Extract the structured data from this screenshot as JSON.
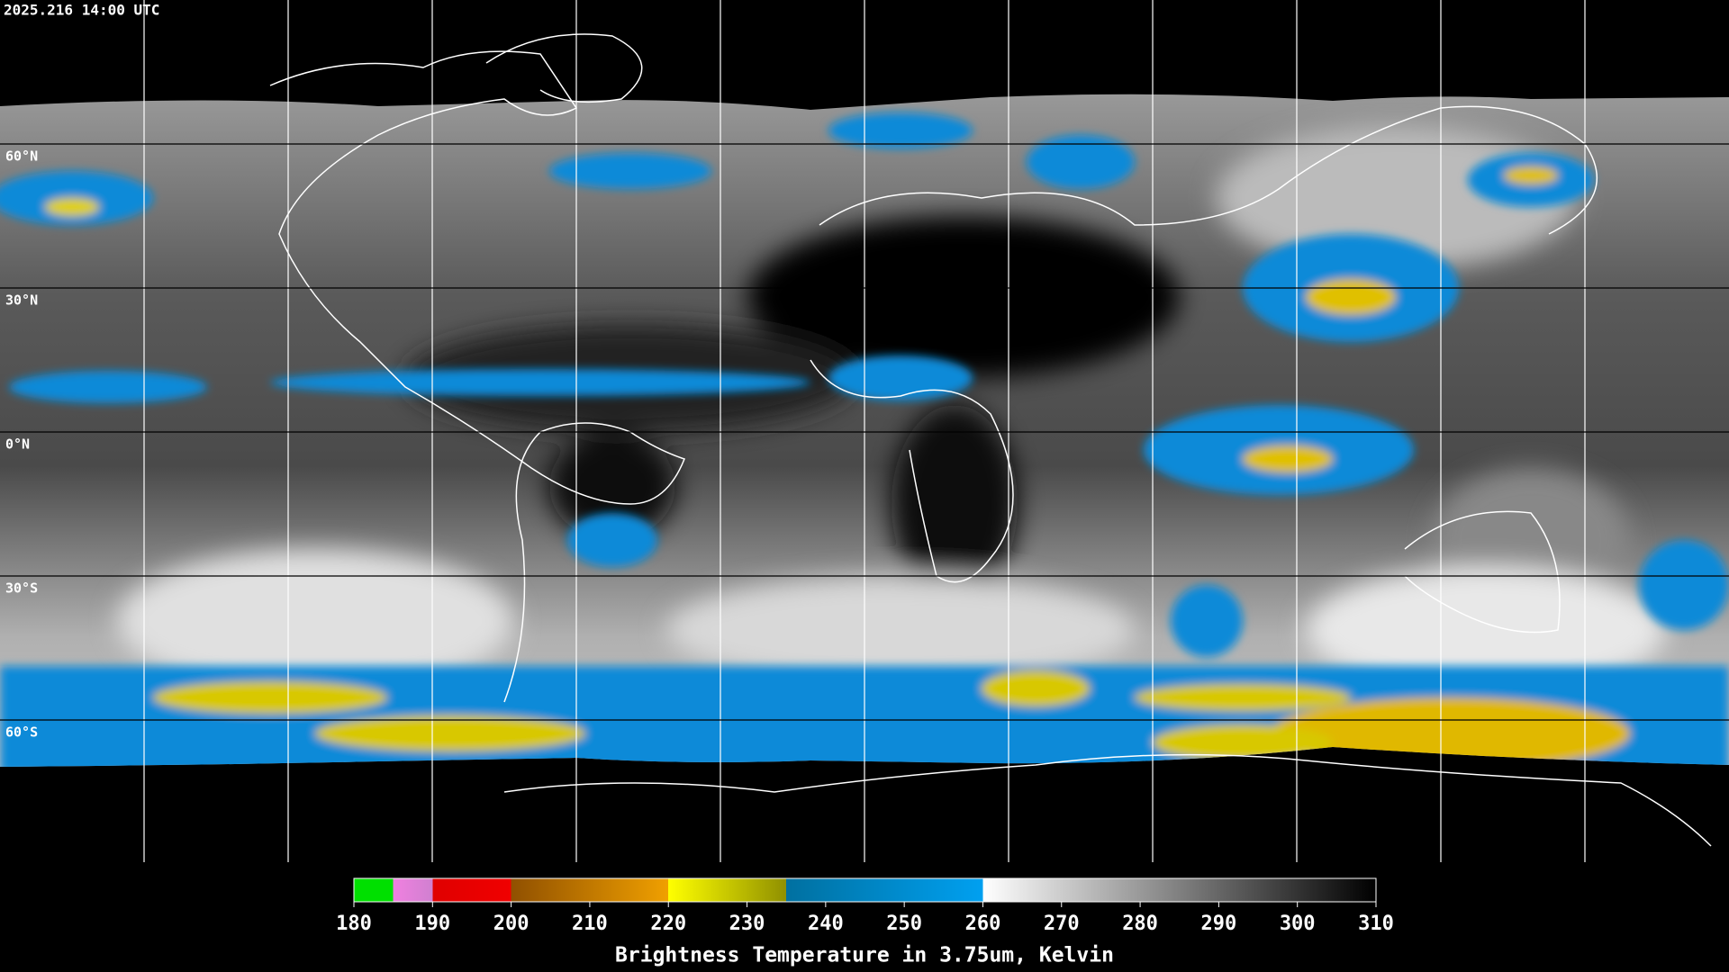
{
  "header": {
    "timestamp": "2025.216 14:00 UTC"
  },
  "grid": {
    "lat_labels": [
      "60°N",
      "30°N",
      "0°N",
      "30°S",
      "60°S"
    ]
  },
  "colorbar": {
    "title": "Brightness Temperature in 3.75um, Kelvin",
    "range": [
      180,
      310
    ],
    "ticks": [
      180,
      190,
      200,
      210,
      220,
      230,
      240,
      250,
      260,
      270,
      280,
      290,
      300,
      310
    ]
  }
}
